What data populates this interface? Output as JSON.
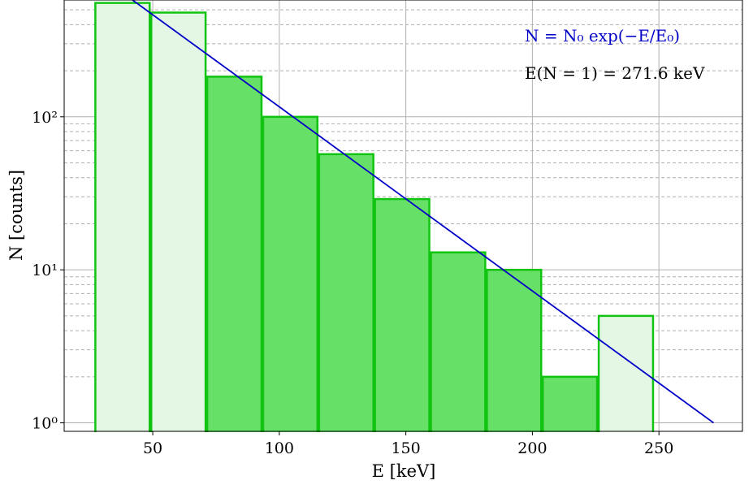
{
  "chart_data": {
    "type": "bar",
    "x_axis": {
      "label": "E [keV]",
      "lim": [
        15,
        283
      ],
      "ticks": [
        50,
        100,
        150,
        200,
        250
      ],
      "tick_labels": [
        "50",
        "100",
        "150",
        "200",
        "250"
      ]
    },
    "y_axis": {
      "label": "N [counts]",
      "scale": "log",
      "lim": [
        0.88,
        580
      ],
      "ticks": [
        1,
        10,
        100
      ],
      "tick_labels": [
        "10⁰",
        "10¹",
        "10²"
      ]
    },
    "grid": true,
    "bins": [
      {
        "x0": 27.0,
        "x1": 49.1,
        "count": 555,
        "fitted": false
      },
      {
        "x0": 49.1,
        "x1": 71.2,
        "count": 480,
        "fitted": false
      },
      {
        "x0": 71.2,
        "x1": 93.3,
        "count": 183,
        "fitted": true
      },
      {
        "x0": 93.3,
        "x1": 115.4,
        "count": 100,
        "fitted": true
      },
      {
        "x0": 115.4,
        "x1": 137.5,
        "count": 57,
        "fitted": true
      },
      {
        "x0": 137.5,
        "x1": 159.6,
        "count": 29,
        "fitted": true
      },
      {
        "x0": 159.6,
        "x1": 181.7,
        "count": 13,
        "fitted": true
      },
      {
        "x0": 181.7,
        "x1": 203.8,
        "count": 10,
        "fitted": true
      },
      {
        "x0": 203.8,
        "x1": 225.9,
        "count": 2,
        "fitted": true
      },
      {
        "x0": 225.9,
        "x1": 248.0,
        "count": 5,
        "fitted": false
      }
    ],
    "fit": {
      "function": "N = N0 exp(-E/E0)",
      "points": [
        [
          42,
          580
        ],
        [
          271.6,
          1
        ]
      ]
    },
    "annotations": {
      "formula": "N = N₀ exp(−E/E₀)",
      "result": "E(N = 1) = 271.6 keV"
    },
    "colors": {
      "bar_edge": "#11c411",
      "bar_fill_fitted": "#66e066",
      "bar_fill_unfitted": "#e4f7e4",
      "fit_line": "#0000c8",
      "formula_text": "#0000c8",
      "result_text": "#000000",
      "grid_major": "#b0b0b0",
      "grid_minor": "#b0b0b0"
    }
  }
}
